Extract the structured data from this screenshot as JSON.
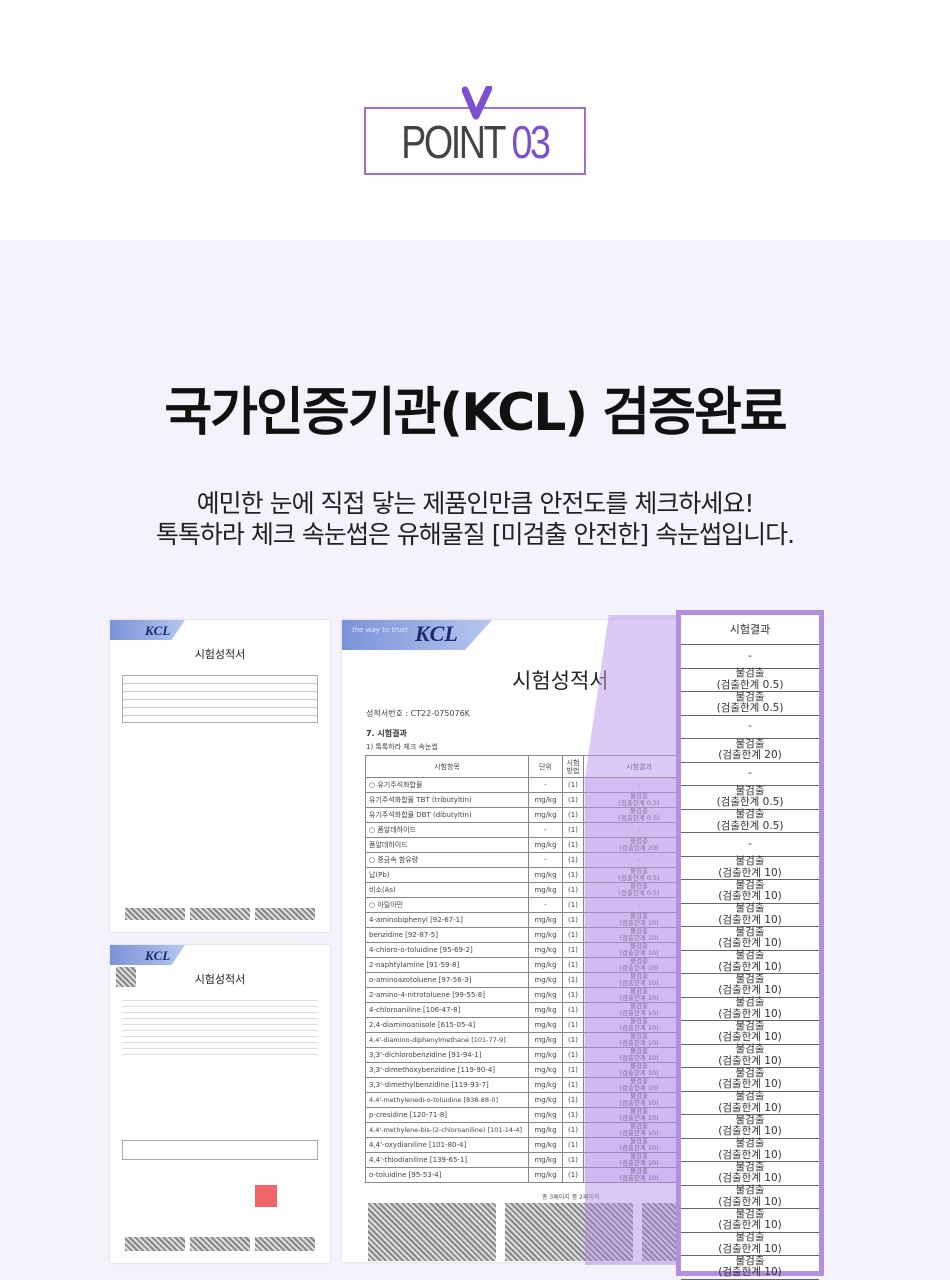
{
  "point": {
    "word": "POINT",
    "number": "03"
  },
  "headline": "국가인증기관(KCL) 검증완료",
  "subtitle": [
    "예민한 눈에 직접 닿는 제품인만큼 안전도를 체크하세요!",
    "톡톡하라 체크 속눈썹은 유해물질 [미검출 안전한] 속눈썹입니다."
  ],
  "colors": {
    "accent": "#7b4fcf",
    "border": "#b48fe0",
    "background": "#f4f2fa"
  },
  "docs": {
    "logo": "KCL",
    "tagline": "the way to trust",
    "doc_title": "시험성적서",
    "main": {
      "cert_no": "성적서번호 :  CT22-075076K",
      "section": "7. 시험결과",
      "subsection": "1)  톡톡하라 체크 속눈썹",
      "headers": [
        "시험항목",
        "단위",
        "시험방법",
        "시험결과"
      ],
      "rows": [
        {
          "item": "○ 유기주석화합물",
          "unit": "-",
          "method": "(1)",
          "result": "-",
          "limit": ""
        },
        {
          "item": "유기주석화합물 TBT (tributyltin)",
          "unit": "mg/kg",
          "method": "(1)",
          "result": "불검출",
          "limit": "(검출한계 0.5)"
        },
        {
          "item": "유기주석화합물 DBT (dibutyltin)",
          "unit": "mg/kg",
          "method": "(1)",
          "result": "불검출",
          "limit": "(검출한계 0.5)"
        },
        {
          "item": "○ 폼알데하이드",
          "unit": "-",
          "method": "(1)",
          "result": "-",
          "limit": ""
        },
        {
          "item": "폼알데하이드",
          "unit": "mg/kg",
          "method": "(1)",
          "result": "불검출",
          "limit": "(검출한계 20)"
        },
        {
          "item": "○ 중금속 함유량",
          "unit": "-",
          "method": "(1)",
          "result": "-",
          "limit": ""
        },
        {
          "item": "납(Pb)",
          "unit": "mg/kg",
          "method": "(1)",
          "result": "불검출",
          "limit": "(검출한계 0.5)"
        },
        {
          "item": "비소(As)",
          "unit": "mg/kg",
          "method": "(1)",
          "result": "불검출",
          "limit": "(검출한계 0.5)"
        },
        {
          "item": "○ 아릴아민",
          "unit": "-",
          "method": "(1)",
          "result": "-",
          "limit": ""
        },
        {
          "item": "4-aminobiphenyl [92-67-1]",
          "unit": "mg/kg",
          "method": "(1)",
          "result": "불검출",
          "limit": "(검출한계 10)"
        },
        {
          "item": "benzidine [92-87-5]",
          "unit": "mg/kg",
          "method": "(1)",
          "result": "불검출",
          "limit": "(검출한계 10)"
        },
        {
          "item": "4-chloro-o-toluidine [95-69-2]",
          "unit": "mg/kg",
          "method": "(1)",
          "result": "불검출",
          "limit": "(검출한계 10)"
        },
        {
          "item": "2-naphtylamine [91-59-8]",
          "unit": "mg/kg",
          "method": "(1)",
          "result": "불검출",
          "limit": "(검출한계 10)"
        },
        {
          "item": "o-aminoazotoluene [97-56-3]",
          "unit": "mg/kg",
          "method": "(1)",
          "result": "불검출",
          "limit": "(검출한계 10)"
        },
        {
          "item": "2-amino-4-nitrotoluene [99-55-8]",
          "unit": "mg/kg",
          "method": "(1)",
          "result": "불검출",
          "limit": "(검출한계 10)"
        },
        {
          "item": "4-chloroaniline [106-47-8]",
          "unit": "mg/kg",
          "method": "(1)",
          "result": "불검출",
          "limit": "(검출한계 10)"
        },
        {
          "item": "2,4-diaminoanisole [615-05-4]",
          "unit": "mg/kg",
          "method": "(1)",
          "result": "불검출",
          "limit": "(검출한계 10)"
        },
        {
          "item": "4,4'-diamino-diphenylmethane [101-77-9]",
          "unit": "mg/kg",
          "method": "(1)",
          "result": "불검출",
          "limit": "(검출한계 10)"
        },
        {
          "item": "3,3'-dichlorobenzidine [91-94-1]",
          "unit": "mg/kg",
          "method": "(1)",
          "result": "불검출",
          "limit": "(검출한계 10)"
        },
        {
          "item": "3,3'-dimethoxybenzidine [119-90-4]",
          "unit": "mg/kg",
          "method": "(1)",
          "result": "불검출",
          "limit": "(검출한계 10)"
        },
        {
          "item": "3,3'-dimethylbenzidine [119-93-7]",
          "unit": "mg/kg",
          "method": "(1)",
          "result": "불검출",
          "limit": "(검출한계 10)"
        },
        {
          "item": "4,4'-methylenedi-o-toluidine [838-88-0]",
          "unit": "mg/kg",
          "method": "(1)",
          "result": "불검출",
          "limit": "(검출한계 10)"
        },
        {
          "item": "p-cresidine [120-71-8]",
          "unit": "mg/kg",
          "method": "(1)",
          "result": "불검출",
          "limit": "(검출한계 10)"
        },
        {
          "item": "4,4'-methylene-bis-(2-chloroaniline) [101-14-4]",
          "unit": "mg/kg",
          "method": "(1)",
          "result": "불검출",
          "limit": "(검출한계 10)"
        },
        {
          "item": "4,4'-oxydianiline [101-80-4]",
          "unit": "mg/kg",
          "method": "(1)",
          "result": "불검출",
          "limit": "(검출한계 10)"
        },
        {
          "item": "4,4'-thiodianiline [139-65-1]",
          "unit": "mg/kg",
          "method": "(1)",
          "result": "불검출",
          "limit": "(검출한계 10)"
        },
        {
          "item": "o-toluidine [95-53-4]",
          "unit": "mg/kg",
          "method": "(1)",
          "result": "불검출",
          "limit": "(검출한계 10)"
        }
      ],
      "page_footer": "총 3페이지 중 2페이지"
    }
  }
}
